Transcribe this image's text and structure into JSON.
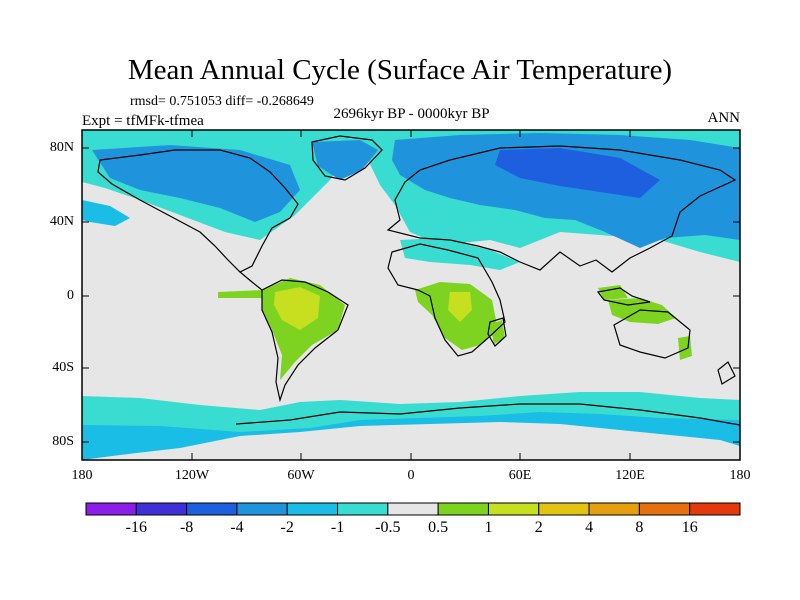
{
  "title": "Mean Annual Cycle (Surface Air Temperature)",
  "stats": "rmsd= 0.751053 diff= -0.268649",
  "period": "2696kyr BP - 0000kyr BP",
  "experiment": "Expt = tfMFk-tfmea",
  "season": "ANN",
  "lat_labels": [
    "80N",
    "40N",
    "0",
    "40S",
    "80S"
  ],
  "lon_labels": [
    "180",
    "120W",
    "60W",
    "0",
    "60E",
    "120E",
    "180"
  ],
  "colorbar": {
    "labels": [
      "-16",
      "-8",
      "-4",
      "-2",
      "-1",
      "-0.5",
      "0.5",
      "1",
      "2",
      "4",
      "8",
      "16"
    ],
    "colors": [
      "#8b1ee8",
      "#3f2fd8",
      "#1e5fe0",
      "#1f93dc",
      "#19bde6",
      "#38dcd0",
      "#e6e6e6",
      "#7ed320",
      "#c6e020",
      "#e3c412",
      "#e6a00e",
      "#e6700e",
      "#e33a0c"
    ]
  },
  "map": {
    "background_color": "#e6e6e6"
  }
}
